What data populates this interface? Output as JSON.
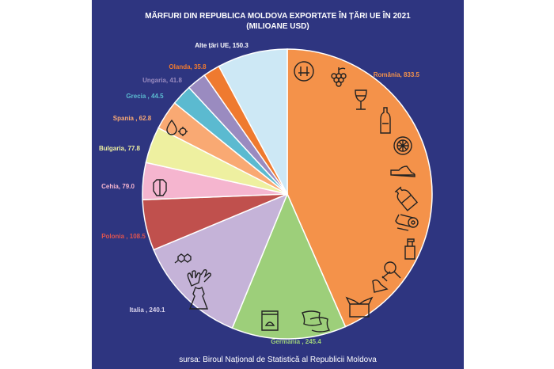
{
  "title_line1": "MĂRFURI DIN REPUBLICA MOLDOVA EXPORTATE ÎN ȚĂRI UE ÎN 2021",
  "title_line2": "(MILIOANE USD)",
  "source": "sursa: Biroul Național de Statistică al Republicii Moldova",
  "chart_data": {
    "type": "pie",
    "title": "MĂRFURI DIN REPUBLICA MOLDOVA EXPORTATE ÎN ȚĂRI UE ÎN 2021",
    "subtitle": "(MILIOANE USD)",
    "slices": [
      {
        "label": "România",
        "value": 833.5,
        "text": "România, 833.5",
        "color": "#f4924a",
        "label_color": "#f4924a"
      },
      {
        "label": "Germania",
        "value": 245.4,
        "text": "Germania , 245.4",
        "color": "#9dcf7a",
        "label_color": "#9dcf7a"
      },
      {
        "label": "Italia",
        "value": 240.1,
        "text": "Italia , 240.1",
        "color": "#c5b3d8",
        "label_color": "#d9d3ec"
      },
      {
        "label": "Polonia",
        "value": 108.5,
        "text": "Polonia , 108.5",
        "color": "#c0504d",
        "label_color": "#e0544f"
      },
      {
        "label": "Cehia",
        "value": 79.0,
        "text": "Cehia, 79.0",
        "color": "#f5b5cf",
        "label_color": "#f5b5cf"
      },
      {
        "label": "Bulgaria",
        "value": 77.8,
        "text": "Bulgaria, 77.8",
        "color": "#eef0a0",
        "label_color": "#eef0a0"
      },
      {
        "label": "Spania",
        "value": 62.8,
        "text": "Spania , 62.8",
        "color": "#f9a973",
        "label_color": "#f9a973"
      },
      {
        "label": "Grecia",
        "value": 44.5,
        "text": "Grecia , 44.5",
        "color": "#5bbad0",
        "label_color": "#5bbad0"
      },
      {
        "label": "Ungaria",
        "value": 41.8,
        "text": "Ungaria, 41.8",
        "color": "#9a8bc0",
        "label_color": "#9a8bc0"
      },
      {
        "label": "Olanda",
        "value": 35.8,
        "text": "Olanda, 35.8",
        "color": "#ef7a2f",
        "label_color": "#ef7a2f"
      },
      {
        "label": "Alte țări UE",
        "value": 150.3,
        "text": "Alte țări UE, 150.3",
        "color": "#cde8f5",
        "label_color": "#ffffff"
      }
    ],
    "icons": [
      "plug-icon",
      "grapes-icon",
      "wine-glass-icon",
      "bottle-icon",
      "wheel-icon",
      "shoe-icon",
      "plastic-bottle-icon",
      "logs-icon",
      "spray-bottle-icon",
      "magnifier-icon",
      "stone-tool-icon",
      "box-icon",
      "pillows-icon",
      "jar-icon",
      "dress-icon",
      "gloves-icon",
      "honeycomb-icon",
      "crystal-icon",
      "drop-gear-icon"
    ]
  }
}
